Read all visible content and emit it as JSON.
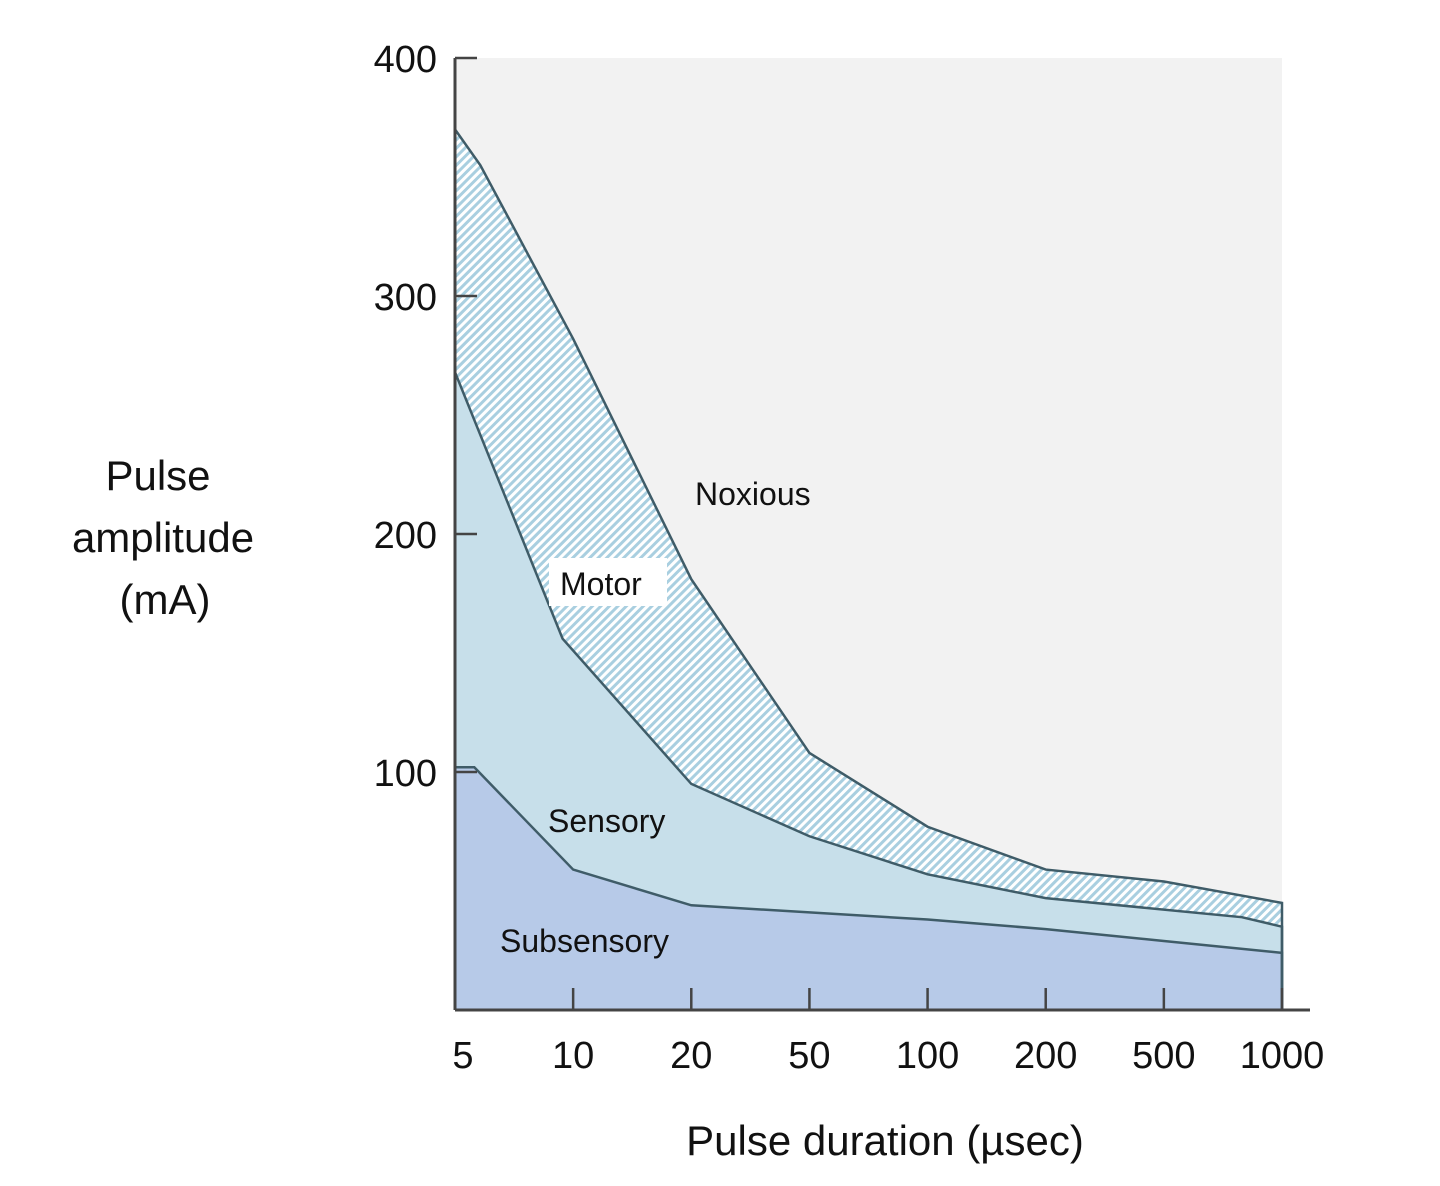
{
  "chart_data": {
    "type": "area",
    "title": "",
    "xlabel": "Pulse duration (µsec)",
    "ylabel_lines": [
      "Pulse",
      "amplitude",
      "(mA)"
    ],
    "x_scale": "log (categorical ticks, equally spaced)",
    "x_ticks": [
      5,
      10,
      20,
      50,
      100,
      200,
      500,
      1000
    ],
    "y_ticks": [
      100,
      200,
      300,
      400
    ],
    "ylim": [
      0,
      400
    ],
    "xlim": [
      5,
      1000
    ],
    "grid": false,
    "boundaries": [
      {
        "id": "sensory_threshold",
        "x": [
          5,
          5.6,
          10,
          20,
          100,
          200,
          500,
          1000
        ],
        "y": [
          102,
          102,
          59,
          44,
          38,
          34,
          29,
          24
        ]
      },
      {
        "id": "motor_threshold",
        "x": [
          5,
          9.4,
          20,
          50,
          100,
          200,
          790,
          1000
        ],
        "y": [
          268,
          156,
          95,
          73,
          57,
          47,
          39,
          35
        ]
      },
      {
        "id": "noxious_threshold",
        "x": [
          5,
          5.8,
          10,
          20,
          50,
          100,
          200,
          500,
          1000
        ],
        "y": [
          370,
          355,
          282,
          181,
          108,
          77,
          59,
          54,
          45
        ]
      }
    ],
    "regions": [
      {
        "label": "Subsensory",
        "color": "#b7caе8"
      },
      {
        "label": "Sensory",
        "color": "#c7dfea"
      },
      {
        "label": "Motor",
        "color": "#a9cfe0",
        "pattern": "diagonal-hatch"
      },
      {
        "label": "Noxious",
        "color": "#f2f2f2"
      }
    ],
    "line_color": "#3f5c68"
  }
}
